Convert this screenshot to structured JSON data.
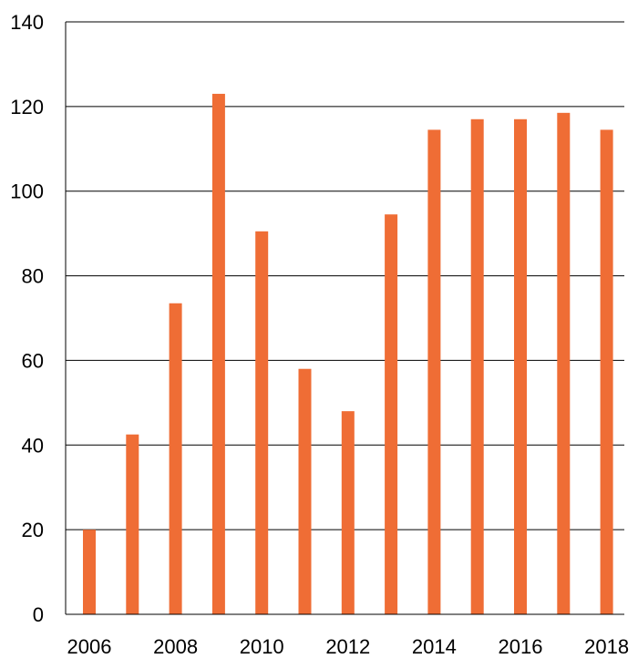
{
  "chart_data": {
    "type": "bar",
    "title": "",
    "xlabel": "",
    "ylabel": "",
    "categories": [
      "2006",
      "2007",
      "2008",
      "2009",
      "2010",
      "2011",
      "2012",
      "2013",
      "2014",
      "2015",
      "2016",
      "2017",
      "2018"
    ],
    "values": [
      20,
      42.5,
      73.5,
      123,
      90.5,
      58,
      48,
      94.5,
      114.5,
      117,
      117,
      118.5,
      114.5
    ],
    "x_tick_labels": [
      "2006",
      "2008",
      "2010",
      "2012",
      "2014",
      "2016",
      "2018"
    ],
    "y_ticks": [
      0,
      20,
      40,
      60,
      80,
      100,
      120,
      140
    ],
    "ylim": [
      0,
      140
    ],
    "grid": "horizontal",
    "legend": "none",
    "bar_color": "#EF6D35",
    "grid_color": "#000000"
  }
}
